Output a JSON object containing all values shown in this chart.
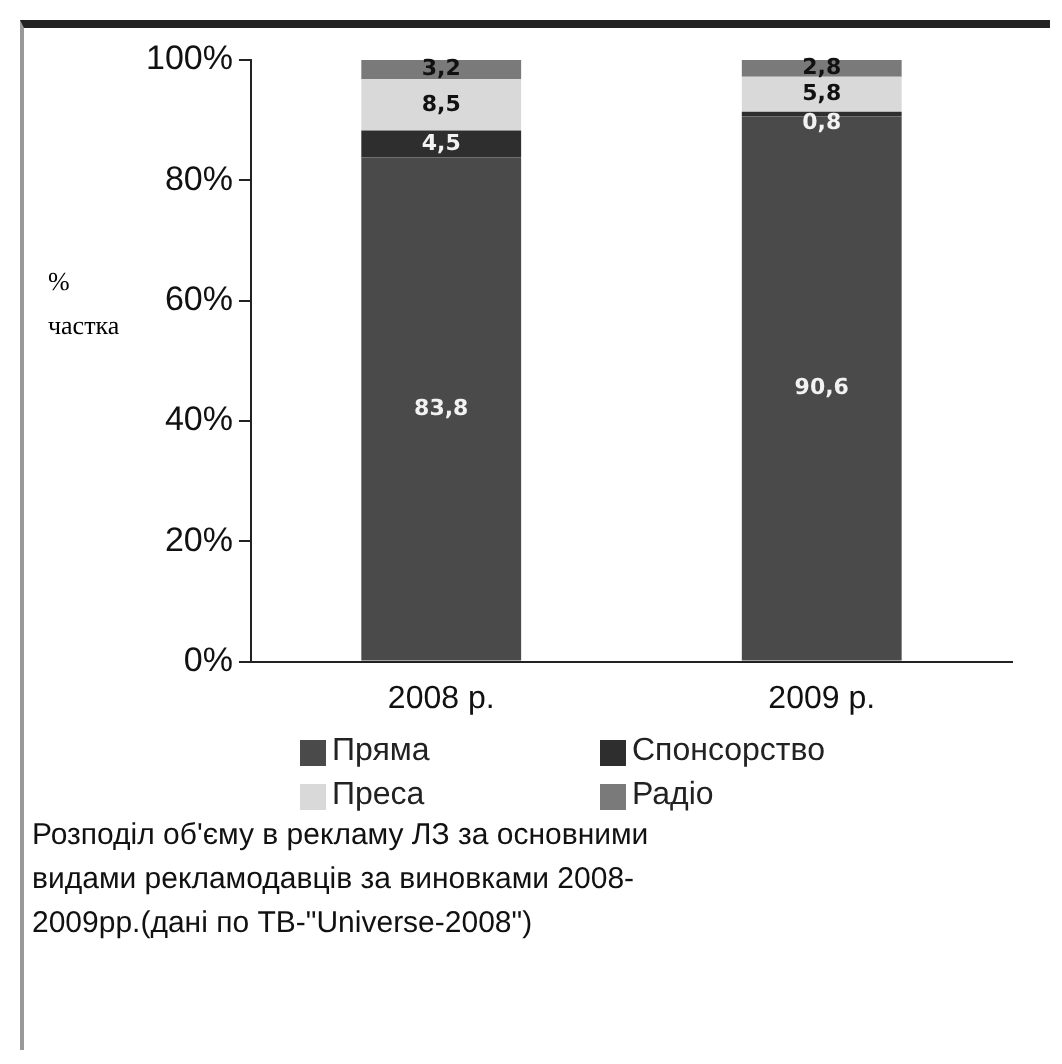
{
  "chart_data": {
    "type": "bar",
    "stacked": true,
    "ylabel": "% частка",
    "categories": [
      "2008 р.",
      "2009 р."
    ],
    "series": [
      {
        "name": "Пряма",
        "color": "#4a4a4a",
        "values": [
          83.8,
          90.6
        ],
        "value_labels": [
          "83,8",
          "90,6"
        ]
      },
      {
        "name": "Спонсорство",
        "color": "#2e2e2e",
        "values": [
          4.5,
          0.8
        ],
        "value_labels": [
          "4,5",
          "0,8"
        ]
      },
      {
        "name": "Преса",
        "color": "#d9d9d9",
        "values": [
          8.5,
          5.8
        ],
        "value_labels": [
          "8,5",
          "5,8"
        ]
      },
      {
        "name": "Радіо",
        "color": "#7a7a7a",
        "values": [
          3.2,
          2.8
        ],
        "value_labels": [
          "3,2",
          "2,8"
        ]
      }
    ],
    "ylim": [
      0,
      100
    ],
    "yticks": [
      {
        "value": 0,
        "label": "0%"
      },
      {
        "value": 20,
        "label": "20%"
      },
      {
        "value": 40,
        "label": "40%"
      },
      {
        "value": 60,
        "label": "60%"
      },
      {
        "value": 80,
        "label": "80%"
      },
      {
        "value": 100,
        "label": "100%"
      }
    ],
    "grid": false,
    "legend": "bottom",
    "annotations": [
      "Розподіл об'єму в рекламу ЛЗ за основними видами рекламодавців за виновками 2008-2009рр.(дані по ТВ-\"Universe-2008\")"
    ]
  }
}
